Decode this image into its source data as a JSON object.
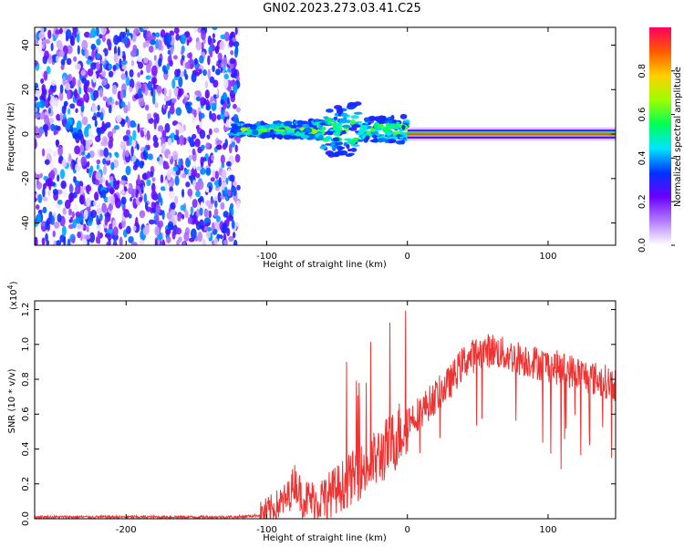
{
  "title": "GN02.2023.273.03.41.C25",
  "chart_data": [
    {
      "type": "heatmap",
      "xlabel": "Height of straight line (km)",
      "ylabel": "Frequency (Hz)",
      "xlim": [
        -265,
        148
      ],
      "ylim": [
        -50,
        48
      ],
      "xticks": [
        -200,
        -100,
        0,
        100
      ],
      "yticks": [
        -40,
        -20,
        0,
        20,
        40
      ],
      "colorbar": {
        "label": "Normalized spectral amplitude",
        "range": [
          0,
          1
        ],
        "ticks": [
          "0.0",
          "0.2",
          "0.4",
          "0.6",
          "0.8"
        ],
        "colors": [
          "#ffffff",
          "#b47cff",
          "#6a00ff",
          "#0033ff",
          "#00e5ff",
          "#00ff55",
          "#9dff00",
          "#ffd000",
          "#ff5a00",
          "#ff0060"
        ]
      },
      "regions": [
        {
          "name": "noise",
          "x": [
            -265,
            -120
          ],
          "freq": [
            -50,
            48
          ],
          "amplitude": "0.1-0.4"
        },
        {
          "name": "meteor-signal",
          "x": [
            -125,
            0
          ],
          "freq_center": 2,
          "freq_halfwidth": 6,
          "amplitude": "0.3-0.7"
        },
        {
          "name": "carrier-line",
          "x": [
            0,
            148
          ],
          "freq": 0,
          "amplitude": "0.8-1.0"
        }
      ]
    },
    {
      "type": "line",
      "xlabel": "Height of straight line (km)",
      "ylabel": "SNR (10 * v/v)",
      "yscale_label": "(x10",
      "yscale_exp": "4",
      "yscale_close": ")",
      "xlim": [
        -265,
        148
      ],
      "ylim": [
        0,
        1.25
      ],
      "xticks": [
        -200,
        -100,
        0,
        100
      ],
      "yticks": [
        "0.0",
        "0.2",
        "0.4",
        "0.6",
        "0.8",
        "1.0",
        "1.2"
      ],
      "color": "#ee3333",
      "series": [
        {
          "name": "SNR",
          "x": [
            -265,
            -120,
            -105,
            -95,
            -85,
            -80,
            -75,
            -65,
            -55,
            -45,
            -35,
            -25,
            -20,
            -15,
            -10,
            -5,
            0,
            10,
            20,
            30,
            40,
            50,
            60,
            70,
            80,
            90,
            100,
            110,
            120,
            130,
            140,
            148
          ],
          "values": [
            0.01,
            0.01,
            0.02,
            0.06,
            0.12,
            0.22,
            0.12,
            0.1,
            0.14,
            0.2,
            0.26,
            0.32,
            0.36,
            0.4,
            0.44,
            0.5,
            0.56,
            0.62,
            0.7,
            0.78,
            0.9,
            0.95,
            0.97,
            0.94,
            0.92,
            0.9,
            0.88,
            0.86,
            0.84,
            0.81,
            0.79,
            0.77
          ]
        }
      ]
    }
  ]
}
